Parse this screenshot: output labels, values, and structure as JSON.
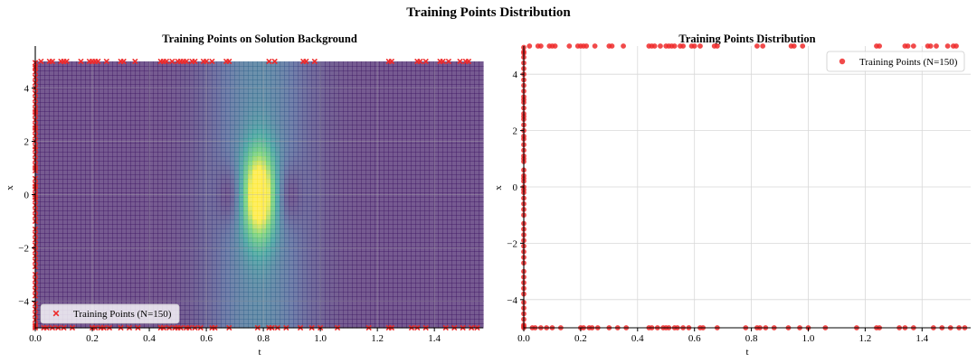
{
  "suptitle": "Training Points Distribution",
  "colors": {
    "marker": "#ee2a2a",
    "colormap": [
      "#440154",
      "#3b528b",
      "#21908d",
      "#5dc963",
      "#fde725"
    ]
  },
  "chart_data": [
    {
      "type": "scatter",
      "title": "Training Points on Solution Background",
      "xlabel": "t",
      "ylabel": "x",
      "xlim": [
        0,
        1.5708
      ],
      "ylim": [
        -5,
        5
      ],
      "xticks": [
        "0.0",
        "0.2",
        "0.4",
        "0.6",
        "0.8",
        "1.0",
        "1.2",
        "1.4"
      ],
      "yticks": [
        "-4",
        "-2",
        "0",
        "2",
        "4"
      ],
      "grid": true,
      "background": "heatmap of solution magnitude, peak near t=0.79, x=0",
      "marker": "x",
      "legend": {
        "label": "Training Points (N=150)",
        "position": "lower-left"
      }
    },
    {
      "type": "scatter",
      "title": "Training Points Distribution",
      "xlabel": "t",
      "ylabel": "x",
      "xlim": [
        0,
        1.5708
      ],
      "ylim": [
        -5,
        5
      ],
      "xticks": [
        "0.0",
        "0.2",
        "0.4",
        "0.6",
        "0.8",
        "1.0",
        "1.2",
        "1.4"
      ],
      "yticks": [
        "-4",
        "-2",
        "0",
        "2",
        "4"
      ],
      "grid": true,
      "marker": "o",
      "legend": {
        "label": "Training Points (N=150)",
        "position": "upper-right"
      }
    }
  ],
  "points": {
    "top_t": [
      0.02,
      0.05,
      0.06,
      0.09,
      0.1,
      0.11,
      0.16,
      0.19,
      0.2,
      0.21,
      0.22,
      0.25,
      0.3,
      0.31,
      0.35,
      0.44,
      0.45,
      0.46,
      0.48,
      0.5,
      0.51,
      0.52,
      0.53,
      0.55,
      0.56,
      0.59,
      0.6,
      0.62,
      0.67,
      0.68,
      0.82,
      0.84,
      0.94,
      0.95,
      0.98,
      1.24,
      1.25,
      1.34,
      1.35,
      1.37,
      1.42,
      1.43,
      1.45,
      1.49,
      1.51,
      1.52
    ],
    "bottom_t": [
      0.0,
      0.03,
      0.04,
      0.06,
      0.08,
      0.1,
      0.13,
      0.2,
      0.21,
      0.23,
      0.24,
      0.26,
      0.3,
      0.33,
      0.36,
      0.44,
      0.45,
      0.47,
      0.49,
      0.5,
      0.51,
      0.53,
      0.54,
      0.56,
      0.58,
      0.62,
      0.63,
      0.68,
      0.78,
      0.82,
      0.83,
      0.85,
      0.88,
      0.93,
      0.97,
      1.0,
      1.06,
      1.17,
      1.24,
      1.25,
      1.32,
      1.34,
      1.37,
      1.44,
      1.47,
      1.5,
      1.53,
      1.55
    ],
    "left_x": [
      -4.9,
      -4.7,
      -4.5,
      -4.3,
      -4.1,
      -3.8,
      -3.6,
      -3.4,
      -3.2,
      -3.0,
      -2.7,
      -2.5,
      -2.3,
      -2.1,
      -1.9,
      -1.7,
      -1.5,
      -1.3,
      -1.0,
      -0.8,
      -0.6,
      -0.4,
      -0.2,
      0.0,
      0.2,
      0.4,
      0.6,
      0.9,
      1.1,
      1.3,
      1.5,
      1.7,
      2.0,
      2.2,
      2.4,
      2.6,
      2.8,
      3.0,
      3.2,
      3.4,
      3.6,
      3.8,
      4.0,
      4.2,
      4.4,
      4.6,
      4.8,
      4.95,
      -4.95,
      4.75,
      -0.1,
      0.3,
      1.0,
      1.8,
      2.5,
      3.1
    ]
  }
}
